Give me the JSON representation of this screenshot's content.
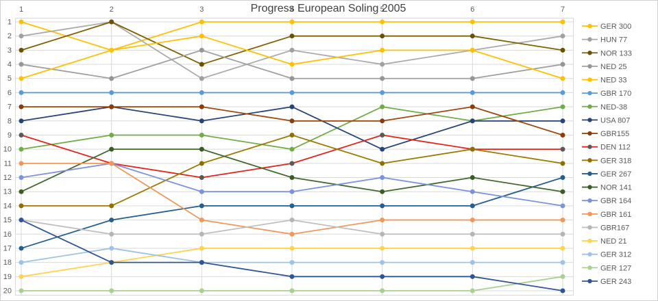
{
  "chart_data": {
    "type": "line",
    "title": "Progress European Soling 2005",
    "x_categories": [
      "1",
      "2",
      "3",
      "4",
      "5",
      "6",
      "7"
    ],
    "x_axis_position": "top",
    "y_axis": {
      "min": 1,
      "max": 20,
      "reversed": true,
      "meaning": "regatta standing (rank)"
    },
    "grid": true,
    "legend_position": "right",
    "series": [
      {
        "name": "GER 300",
        "color": "#FFC000",
        "marker_color": "#FFC000",
        "ranks": [
          1,
          3,
          1,
          1,
          1,
          1,
          1
        ]
      },
      {
        "name": "HUN 77",
        "color": "#ABABAB",
        "marker_color": "#A0A0A0",
        "ranks": [
          2,
          1,
          5,
          3,
          4,
          3,
          2
        ]
      },
      {
        "name": "NOR 133",
        "color": "#7F6000",
        "marker_color": "#6B5100",
        "ranks": [
          3,
          1,
          4,
          2,
          2,
          2,
          3
        ]
      },
      {
        "name": "NED 25",
        "color": "#A0A0A0",
        "marker_color": "#969696",
        "ranks": [
          4,
          5,
          3,
          5,
          5,
          5,
          4
        ]
      },
      {
        "name": "NED 33",
        "color": "#FFC000",
        "marker_color": "#FFC000",
        "ranks": [
          5,
          3,
          2,
          4,
          3,
          3,
          5
        ]
      },
      {
        "name": "GBR 170",
        "color": "#5B9BD5",
        "marker_color": "#5B9BD5",
        "ranks": [
          6,
          6,
          6,
          6,
          6,
          6,
          6
        ]
      },
      {
        "name": "NED-38",
        "color": "#70AD47",
        "marker_color": "#70AD47",
        "ranks": [
          10,
          9,
          9,
          10,
          7,
          8,
          7
        ]
      },
      {
        "name": "USA 807",
        "color": "#264478",
        "marker_color": "#264478",
        "ranks": [
          8,
          7,
          8,
          7,
          10,
          8,
          8
        ]
      },
      {
        "name": "GBR155",
        "color": "#9E480E",
        "marker_color": "#8A3C0A",
        "ranks": [
          7,
          7,
          7,
          8,
          8,
          7,
          9
        ]
      },
      {
        "name": "DEN 112",
        "color": "#E5231B",
        "marker_color": "#595959",
        "ranks": [
          9,
          11,
          12,
          11,
          9,
          10,
          10
        ]
      },
      {
        "name": "GER 318",
        "color": "#9C7A00",
        "marker_color": "#8E6F00",
        "ranks": [
          14,
          14,
          11,
          9,
          11,
          10,
          11
        ]
      },
      {
        "name": "GER 267",
        "color": "#255E91",
        "marker_color": "#255E91",
        "ranks": [
          17,
          15,
          14,
          14,
          14,
          14,
          12
        ]
      },
      {
        "name": "NOR 141",
        "color": "#43682B",
        "marker_color": "#3A5C25",
        "ranks": [
          13,
          10,
          10,
          12,
          13,
          12,
          13
        ]
      },
      {
        "name": "GBR 164",
        "color": "#7B93DB",
        "marker_color": "#7B93DB",
        "ranks": [
          12,
          11,
          13,
          13,
          12,
          13,
          14
        ]
      },
      {
        "name": "GBR 161",
        "color": "#F1975A",
        "marker_color": "#F1975A",
        "ranks": [
          11,
          11,
          15,
          16,
          15,
          15,
          15
        ]
      },
      {
        "name": "GBR167",
        "color": "#BFBFBF",
        "marker_color": "#B5B5B5",
        "ranks": [
          15,
          16,
          16,
          15,
          16,
          16,
          16
        ]
      },
      {
        "name": "NED 21",
        "color": "#FFD34D",
        "marker_color": "#FFD34D",
        "ranks": [
          19,
          18,
          17,
          17,
          17,
          17,
          17
        ]
      },
      {
        "name": "GER 312",
        "color": "#9DC3E6",
        "marker_color": "#9DC3E6",
        "ranks": [
          18,
          17,
          18,
          18,
          18,
          18,
          18
        ]
      },
      {
        "name": "GER 127",
        "color": "#A9D18E",
        "marker_color": "#A9D18E",
        "ranks": [
          20,
          20,
          20,
          20,
          20,
          20,
          19
        ]
      },
      {
        "name": "GER 243",
        "color": "#2F5597",
        "marker_color": "#2F5597",
        "ranks": [
          15,
          18,
          18,
          19,
          19,
          19,
          20
        ]
      }
    ]
  },
  "colors": {
    "background": "#FFFFFF",
    "gridline": "#D9D9D9",
    "plot_border": "#D9D9D9",
    "axis_text": "#595959",
    "legend_text": "#595959",
    "title_text": "#3F3F3F",
    "frame_border": "#CFCFCF"
  }
}
